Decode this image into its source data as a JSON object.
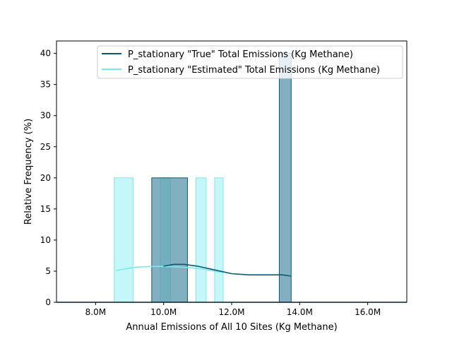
{
  "chart_data": {
    "type": "histogram",
    "xlabel": "Annual Emissions of All 10 Sites (Kg Methane)",
    "ylabel": "Relative Frequency (%)",
    "xlim": [
      6.85,
      17.15
    ],
    "ylim": [
      0,
      42
    ],
    "x_ticks": [
      {
        "value": 8,
        "label": "8.0M"
      },
      {
        "value": 10,
        "label": "10.0M"
      },
      {
        "value": 12,
        "label": "12.0M"
      },
      {
        "value": 14,
        "label": "14.0M"
      },
      {
        "value": 16,
        "label": "16.0M"
      }
    ],
    "y_ticks": [
      {
        "value": 0,
        "label": "0"
      },
      {
        "value": 5,
        "label": "5"
      },
      {
        "value": 10,
        "label": "10"
      },
      {
        "value": 15,
        "label": "15"
      },
      {
        "value": 20,
        "label": "20"
      },
      {
        "value": 25,
        "label": "25"
      },
      {
        "value": 30,
        "label": "30"
      },
      {
        "value": 35,
        "label": "35"
      },
      {
        "value": 40,
        "label": "40"
      }
    ],
    "legend_position": "top-right",
    "series": [
      {
        "name": "P_stationary \"True\" Total Emissions (Kg Methane)",
        "line_color": "#0b5a70",
        "fill_color": "#4f8fa5",
        "bins": [
          {
            "x0": 9.65,
            "x1": 10.7,
            "value": 20
          },
          {
            "x0": 13.4,
            "x1": 13.75,
            "value": 40
          }
        ],
        "kde": [
          [
            10.0,
            5.8
          ],
          [
            10.3,
            6.1
          ],
          [
            10.6,
            6.1
          ],
          [
            11.0,
            5.8
          ],
          [
            11.5,
            5.2
          ],
          [
            12.0,
            4.6
          ],
          [
            12.5,
            4.4
          ],
          [
            13.0,
            4.4
          ],
          [
            13.5,
            4.4
          ],
          [
            13.75,
            4.2
          ]
        ],
        "baseline": [
          6.85,
          17.15
        ]
      },
      {
        "name": "P_stationary \"Estimated\" Total Emissions (Kg Methane)",
        "line_color": "#7de8ec",
        "fill_color": "#a6f2f5",
        "bins": [
          {
            "x0": 8.55,
            "x1": 9.1,
            "value": 20
          },
          {
            "x0": 9.9,
            "x1": 10.2,
            "value": 20
          },
          {
            "x0": 10.95,
            "x1": 11.25,
            "value": 20
          },
          {
            "x0": 11.5,
            "x1": 11.75,
            "value": 20
          }
        ],
        "kde": [
          [
            8.6,
            5.1
          ],
          [
            8.9,
            5.4
          ],
          [
            9.2,
            5.65
          ],
          [
            9.6,
            5.75
          ],
          [
            10.0,
            5.75
          ],
          [
            10.4,
            5.7
          ],
          [
            10.8,
            5.55
          ],
          [
            11.2,
            5.3
          ],
          [
            11.6,
            4.9
          ],
          [
            11.75,
            4.8
          ]
        ],
        "baseline": null
      }
    ]
  }
}
